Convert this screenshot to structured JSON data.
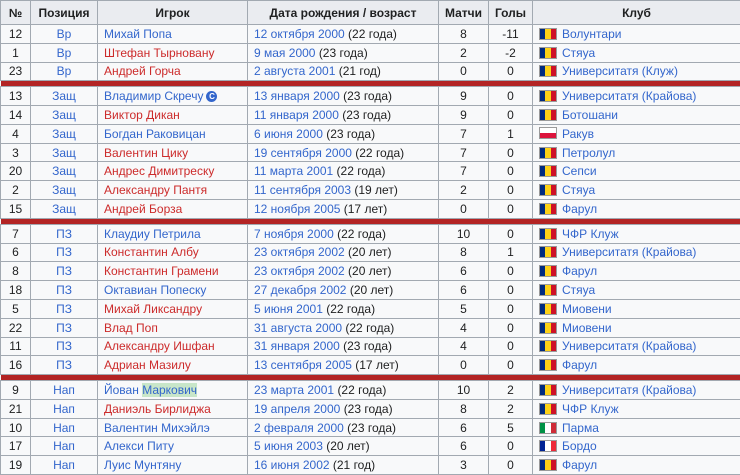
{
  "colors": {
    "link_blue": "#3366cc",
    "link_red": "#cc2b2b",
    "text": "#202122",
    "border": "#a2a9b1",
    "header_bg": "#eaecf0",
    "cell_bg": "#f8f9fa",
    "separator_red": "#b32424",
    "search_highlight": "#c8e6c9",
    "captain_badge": "#3366cc"
  },
  "icons": {
    "captain_glyph": "C"
  },
  "flags": {
    "romania": {
      "orientation": "vertical",
      "colors": [
        "#002b7f",
        "#fcd116",
        "#ce1126"
      ]
    },
    "poland": {
      "orientation": "horizontal",
      "colors": [
        "#ffffff",
        "#dc143c"
      ]
    },
    "italy": {
      "orientation": "vertical",
      "colors": [
        "#009246",
        "#ffffff",
        "#ce2b37"
      ]
    },
    "france": {
      "orientation": "vertical",
      "colors": [
        "#002395",
        "#ffffff",
        "#ed2939"
      ]
    }
  },
  "table": {
    "columns": [
      {
        "key": "num",
        "label": "№"
      },
      {
        "key": "pos",
        "label": "Позиция"
      },
      {
        "key": "player",
        "label": "Игрок"
      },
      {
        "key": "date",
        "label": "Дата рождения / возраст"
      },
      {
        "key": "matches",
        "label": "Матчи"
      },
      {
        "key": "goals",
        "label": "Голы"
      },
      {
        "key": "club",
        "label": "Клуб"
      }
    ],
    "rows": [
      {
        "num": "12",
        "pos": "Вр",
        "player": "Михай Попа",
        "player_color": "blue",
        "date": "12 октября 2000",
        "age": "(22 года)",
        "matches": "8",
        "goals": "-11",
        "club": "Волунтари",
        "flag": "romania"
      },
      {
        "num": "1",
        "pos": "Вр",
        "player": "Штефан Тырновану",
        "player_color": "red",
        "date": "9 мая 2000",
        "age": "(23 года)",
        "matches": "2",
        "goals": "-2",
        "club": "Стяуа",
        "flag": "romania"
      },
      {
        "num": "23",
        "pos": "Вр",
        "player": "Андрей Горча",
        "player_color": "red",
        "date": "2 августа 2001",
        "age": "(21 год)",
        "matches": "0",
        "goals": "0",
        "club": "Университатя (Клуж)",
        "flag": "romania"
      },
      {
        "num": "13",
        "pos": "Защ",
        "player": "Владимир Скречу",
        "player_color": "blue",
        "captain": true,
        "separator_before": true,
        "date": "13 января 2000",
        "age": "(23 года)",
        "matches": "9",
        "goals": "0",
        "club": "Университатя (Крайова)",
        "flag": "romania"
      },
      {
        "num": "14",
        "pos": "Защ",
        "player": "Виктор Дикан",
        "player_color": "red",
        "date": "11 января 2000",
        "age": "(23 года)",
        "matches": "9",
        "goals": "0",
        "club": "Ботошани",
        "flag": "romania"
      },
      {
        "num": "4",
        "pos": "Защ",
        "player": "Богдан Раковицан",
        "player_color": "blue",
        "date": "6 июня 2000",
        "age": "(23 года)",
        "matches": "7",
        "goals": "1",
        "club": "Ракув",
        "flag": "poland"
      },
      {
        "num": "3",
        "pos": "Защ",
        "player": "Валентин Цику",
        "player_color": "red",
        "date": "19 сентября 2000",
        "age": "(22 года)",
        "matches": "7",
        "goals": "0",
        "club": "Петролул",
        "flag": "romania"
      },
      {
        "num": "20",
        "pos": "Защ",
        "player": "Андрес Димитреску",
        "player_color": "red",
        "date": "11 марта 2001",
        "age": "(22 года)",
        "matches": "7",
        "goals": "0",
        "club": "Сепси",
        "flag": "romania"
      },
      {
        "num": "2",
        "pos": "Защ",
        "player": "Александру Пантя",
        "player_color": "red",
        "date": "11 сентября 2003",
        "age": "(19 лет)",
        "matches": "2",
        "goals": "0",
        "club": "Стяуа",
        "flag": "romania"
      },
      {
        "num": "15",
        "pos": "Защ",
        "player": "Андрей Борза",
        "player_color": "red",
        "date": "12 ноября 2005",
        "age": "(17 лет)",
        "matches": "0",
        "goals": "0",
        "club": "Фарул",
        "flag": "romania"
      },
      {
        "num": "7",
        "pos": "ПЗ",
        "player": "Клаудиу Петрила",
        "player_color": "blue",
        "separator_before": true,
        "date": "7 ноября 2000",
        "age": "(22 года)",
        "matches": "10",
        "goals": "0",
        "club": "ЧФР Клуж",
        "flag": "romania"
      },
      {
        "num": "6",
        "pos": "ПЗ",
        "player": "Константин Албу",
        "player_color": "red",
        "date": "23 октября 2002",
        "age": "(20 лет)",
        "matches": "8",
        "goals": "1",
        "club": "Университатя (Крайова)",
        "flag": "romania"
      },
      {
        "num": "8",
        "pos": "ПЗ",
        "player": "Константин Грамени",
        "player_color": "red",
        "date": "23 октября 2002",
        "age": "(20 лет)",
        "matches": "6",
        "goals": "0",
        "club": "Фарул",
        "flag": "romania"
      },
      {
        "num": "18",
        "pos": "ПЗ",
        "player": "Октавиан Попеску",
        "player_color": "blue",
        "date": "27 декабря 2002",
        "age": "(20 лет)",
        "matches": "6",
        "goals": "0",
        "club": "Стяуа",
        "flag": "romania"
      },
      {
        "num": "5",
        "pos": "ПЗ",
        "player": "Михай Ликсандру",
        "player_color": "red",
        "date": "5 июня 2001",
        "age": "(22 года)",
        "matches": "5",
        "goals": "0",
        "club": "Миовени",
        "flag": "romania"
      },
      {
        "num": "22",
        "pos": "ПЗ",
        "player": "Влад Поп",
        "player_color": "red",
        "date": "31 августа 2000",
        "age": "(22 года)",
        "matches": "4",
        "goals": "0",
        "club": "Миовени",
        "flag": "romania"
      },
      {
        "num": "11",
        "pos": "ПЗ",
        "player": "Александру Ишфан",
        "player_color": "red",
        "date": "31 января 2000",
        "age": "(23 года)",
        "matches": "4",
        "goals": "0",
        "club": "Университатя (Крайова)",
        "flag": "romania"
      },
      {
        "num": "16",
        "pos": "ПЗ",
        "player": "Адриан Мазилу",
        "player_color": "red",
        "date": "13 сентября 2005",
        "age": "(17 лет)",
        "matches": "0",
        "goals": "0",
        "club": "Фарул",
        "flag": "romania"
      },
      {
        "num": "9",
        "pos": "Нап",
        "player": "Йован Маркович",
        "player_color": "blue",
        "highlight": "Маркович",
        "separator_before": true,
        "date": "23 марта 2001",
        "age": "(22 года)",
        "matches": "10",
        "goals": "2",
        "club": "Университатя (Крайова)",
        "flag": "romania"
      },
      {
        "num": "21",
        "pos": "Нап",
        "player": "Даниэль Бирлиджа",
        "player_color": "red",
        "date": "19 апреля 2000",
        "age": "(23 года)",
        "matches": "8",
        "goals": "2",
        "club": "ЧФР Клуж",
        "flag": "romania"
      },
      {
        "num": "10",
        "pos": "Нап",
        "player": "Валентин Михэйлэ",
        "player_color": "blue",
        "date": "2 февраля 2000",
        "age": "(23 года)",
        "matches": "6",
        "goals": "5",
        "club": "Парма",
        "flag": "italy"
      },
      {
        "num": "17",
        "pos": "Нап",
        "player": "Алекси Питу",
        "player_color": "blue",
        "date": "5 июня 2003",
        "age": "(20 лет)",
        "matches": "6",
        "goals": "0",
        "club": "Бордо",
        "flag": "france"
      },
      {
        "num": "19",
        "pos": "Нап",
        "player": "Луис Мунтяну",
        "player_color": "blue",
        "date": "16 июня 2002",
        "age": "(21 год)",
        "matches": "3",
        "goals": "0",
        "club": "Фарул",
        "flag": "romania"
      }
    ]
  }
}
